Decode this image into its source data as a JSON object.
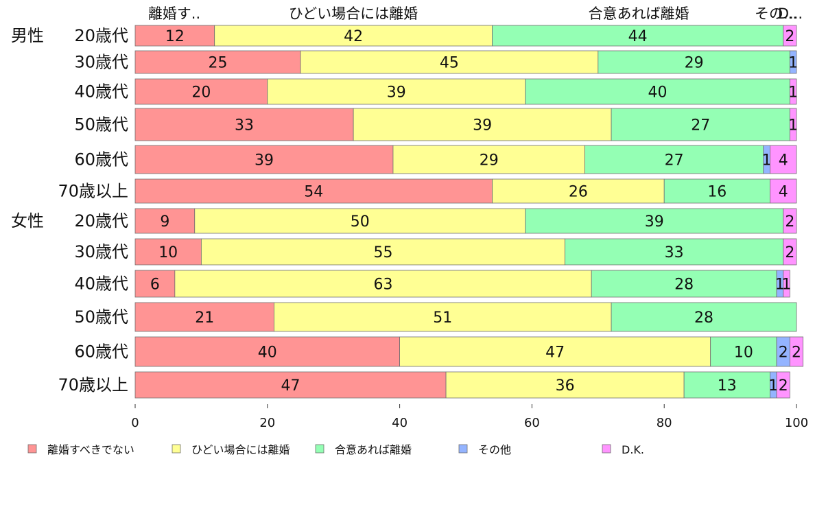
{
  "chart_data": {
    "type": "bar",
    "orientation": "horizontal",
    "stacked": true,
    "xlim": [
      0,
      100
    ],
    "x_ticks": [
      "0",
      "20",
      "40",
      "60",
      "80",
      "100"
    ],
    "grid": false,
    "legend_position": "bottom",
    "top_labels": [
      "離婚す..",
      "ひどい場合には離婚",
      "合意あれば離婚",
      "その...",
      "D..."
    ],
    "categories": [
      {
        "group": "男性",
        "label": "20歳代"
      },
      {
        "group": "",
        "label": "30歳代"
      },
      {
        "group": "",
        "label": "40歳代"
      },
      {
        "group": "",
        "label": "50歳代"
      },
      {
        "group": "",
        "label": "60歳代"
      },
      {
        "group": "",
        "label": "70歳以上"
      },
      {
        "group": "女性",
        "label": "20歳代"
      },
      {
        "group": "",
        "label": "30歳代"
      },
      {
        "group": "",
        "label": "40歳代"
      },
      {
        "group": "",
        "label": "50歳代"
      },
      {
        "group": "",
        "label": "60歳代"
      },
      {
        "group": "",
        "label": "70歳以上"
      }
    ],
    "series": [
      {
        "name": "離婚すべきでない",
        "color": "#ff9494",
        "values": [
          12,
          25,
          20,
          33,
          39,
          54,
          9,
          10,
          6,
          21,
          40,
          47
        ]
      },
      {
        "name": "ひどい場合には離婚",
        "color": "#ffff94",
        "values": [
          42,
          45,
          39,
          39,
          29,
          26,
          50,
          55,
          63,
          51,
          47,
          36
        ]
      },
      {
        "name": "合意あれば離婚",
        "color": "#94ffb4",
        "values": [
          44,
          29,
          40,
          27,
          27,
          16,
          39,
          33,
          28,
          28,
          10,
          13
        ]
      },
      {
        "name": "その他",
        "color": "#94b4ff",
        "values": [
          0,
          1,
          0,
          0,
          1,
          0,
          0,
          0,
          1,
          0,
          2,
          1
        ]
      },
      {
        "name": "D.K.",
        "color": "#ff94ff",
        "values": [
          2,
          0,
          1,
          1,
          4,
          4,
          2,
          2,
          1,
          0,
          2,
          2
        ]
      }
    ]
  }
}
